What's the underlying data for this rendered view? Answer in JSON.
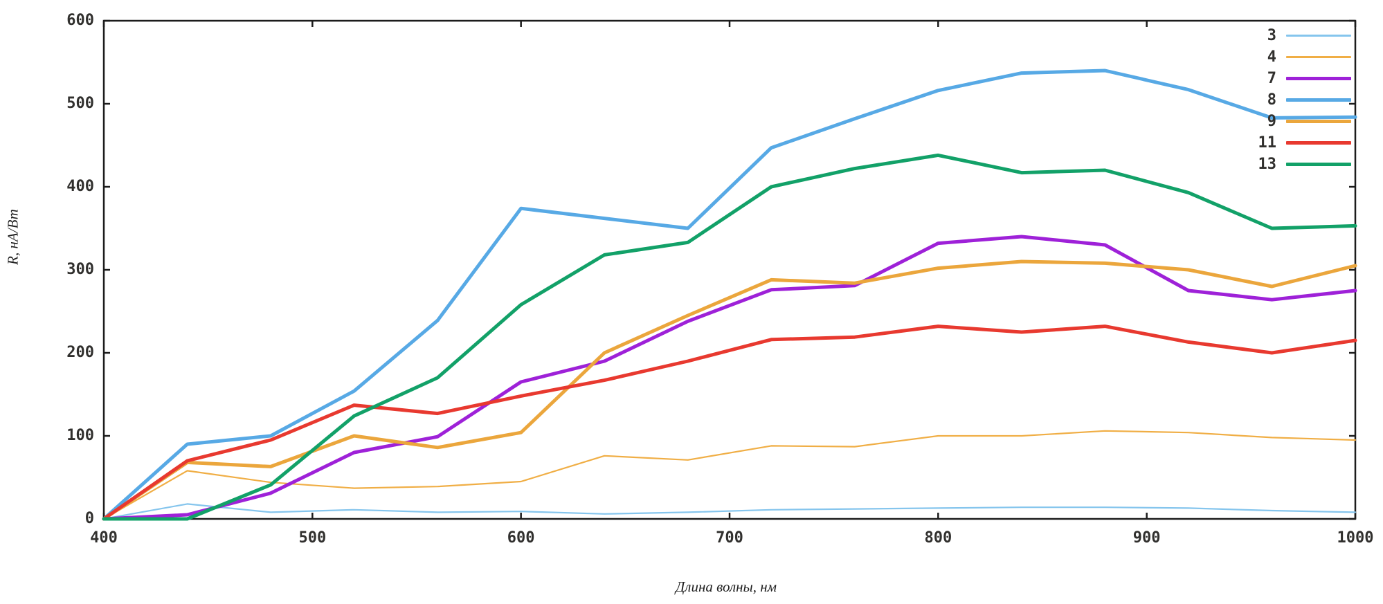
{
  "chart_data": {
    "type": "line",
    "title": "",
    "xlabel": "Длина волны, нм",
    "ylabel": "R, нА/Вт",
    "xlim": [
      400,
      1000
    ],
    "ylim": [
      0,
      600
    ],
    "x_ticks": [
      400,
      500,
      600,
      700,
      800,
      900,
      1000
    ],
    "y_ticks": [
      0,
      100,
      200,
      300,
      400,
      500,
      600
    ],
    "grid": false,
    "legend_position": "top-right-inside",
    "x": [
      400,
      440,
      480,
      520,
      560,
      600,
      640,
      680,
      720,
      760,
      800,
      840,
      880,
      920,
      960,
      1000
    ],
    "series": [
      {
        "name": "3",
        "color": "#85C5ED",
        "width": 2.2,
        "values": [
          0,
          18,
          8,
          11,
          8,
          9,
          6,
          8,
          11,
          12,
          13,
          14,
          14,
          13,
          10,
          8
        ]
      },
      {
        "name": "4",
        "color": "#F0AE45",
        "width": 2.2,
        "values": [
          0,
          58,
          44,
          37,
          39,
          45,
          76,
          71,
          88,
          87,
          100,
          100,
          106,
          104,
          98,
          95
        ]
      },
      {
        "name": "7",
        "color": "#9E21D8",
        "width": 5,
        "values": [
          0,
          5,
          31,
          80,
          99,
          165,
          190,
          238,
          276,
          281,
          332,
          340,
          330,
          275,
          264,
          275
        ]
      },
      {
        "name": "8",
        "color": "#57A9E5",
        "width": 5,
        "values": [
          0,
          90,
          100,
          154,
          239,
          374,
          362,
          350,
          447,
          482,
          516,
          537,
          540,
          517,
          483,
          484
        ]
      },
      {
        "name": "9",
        "color": "#EBA63C",
        "width": 5,
        "values": [
          0,
          68,
          63,
          100,
          86,
          104,
          200,
          245,
          288,
          284,
          302,
          310,
          308,
          300,
          280,
          305
        ]
      },
      {
        "name": "11",
        "color": "#E8392F",
        "width": 5,
        "values": [
          0,
          70,
          95,
          137,
          127,
          148,
          167,
          190,
          216,
          219,
          232,
          225,
          232,
          213,
          200,
          215
        ]
      },
      {
        "name": "13",
        "color": "#12A168",
        "width": 5,
        "values": [
          0,
          0,
          41,
          124,
          170,
          258,
          318,
          333,
          400,
          422,
          438,
          417,
          420,
          393,
          350,
          353
        ]
      }
    ]
  },
  "colors": {
    "background": "#ffffff",
    "axis": "#1c1c1c",
    "tick_label": "#31302e"
  }
}
